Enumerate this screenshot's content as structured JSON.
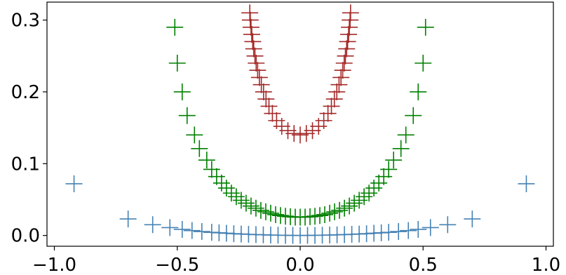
{
  "chart_data": {
    "type": "scatter",
    "title": "",
    "xlabel": "",
    "ylabel": "",
    "xlim": [
      -1.03,
      1.03
    ],
    "ylim": [
      -0.015,
      0.325
    ],
    "xticks": [
      -1.0,
      -0.5,
      0.0,
      0.5,
      1.0
    ],
    "xtick_labels": [
      "−1.0",
      "−0.5",
      "0.0",
      "0.5",
      "1.0"
    ],
    "yticks": [
      0.0,
      0.1,
      0.2,
      0.3
    ],
    "ytick_labels": [
      "0.0",
      "0.1",
      "0.2",
      "0.3"
    ],
    "grid": false,
    "legend": null,
    "marker": "+",
    "series": [
      {
        "color": "#4682b4",
        "points": [
          [
            -0.92,
            0.072
          ],
          [
            -0.7,
            0.023
          ],
          [
            -0.6,
            0.015
          ],
          [
            -0.53,
            0.011
          ],
          [
            -0.48,
            0.0085
          ],
          [
            -0.44,
            0.0068
          ],
          [
            -0.4,
            0.0055
          ],
          [
            -0.36,
            0.0044
          ],
          [
            -0.33,
            0.0037
          ],
          [
            -0.3,
            0.0031
          ],
          [
            -0.27,
            0.0025
          ],
          [
            -0.24,
            0.002
          ],
          [
            -0.21,
            0.0016
          ],
          [
            -0.18,
            0.0012
          ],
          [
            -0.15,
            0.0009
          ],
          [
            -0.12,
            0.0006
          ],
          [
            -0.09,
            0.0004
          ],
          [
            -0.06,
            0.0002
          ],
          [
            -0.03,
            0.0001
          ],
          [
            0.0,
            0.0
          ],
          [
            0.03,
            0.0001
          ],
          [
            0.06,
            0.0002
          ],
          [
            0.09,
            0.0004
          ],
          [
            0.12,
            0.0006
          ],
          [
            0.15,
            0.0009
          ],
          [
            0.18,
            0.0012
          ],
          [
            0.21,
            0.0016
          ],
          [
            0.24,
            0.002
          ],
          [
            0.27,
            0.0025
          ],
          [
            0.3,
            0.0031
          ],
          [
            0.33,
            0.0037
          ],
          [
            0.36,
            0.0044
          ],
          [
            0.4,
            0.0055
          ],
          [
            0.44,
            0.0068
          ],
          [
            0.48,
            0.0085
          ],
          [
            0.53,
            0.011
          ],
          [
            0.6,
            0.015
          ],
          [
            0.7,
            0.023
          ],
          [
            0.92,
            0.072
          ]
        ]
      },
      {
        "color": "#008000",
        "points": [
          [
            -0.51,
            0.29
          ],
          [
            -0.5,
            0.24
          ],
          [
            -0.48,
            0.2
          ],
          [
            -0.46,
            0.167
          ],
          [
            -0.43,
            0.14
          ],
          [
            -0.41,
            0.121
          ],
          [
            -0.38,
            0.105
          ],
          [
            -0.36,
            0.092
          ],
          [
            -0.34,
            0.082
          ],
          [
            -0.32,
            0.073
          ],
          [
            -0.3,
            0.066
          ],
          [
            -0.28,
            0.059
          ],
          [
            -0.26,
            0.054
          ],
          [
            -0.24,
            0.049
          ],
          [
            -0.22,
            0.045
          ],
          [
            -0.2,
            0.041
          ],
          [
            -0.18,
            0.038
          ],
          [
            -0.16,
            0.035
          ],
          [
            -0.14,
            0.033
          ],
          [
            -0.12,
            0.031
          ],
          [
            -0.1,
            0.029
          ],
          [
            -0.08,
            0.0278
          ],
          [
            -0.06,
            0.0268
          ],
          [
            -0.04,
            0.0261
          ],
          [
            -0.02,
            0.0256
          ],
          [
            0.0,
            0.0255
          ],
          [
            0.02,
            0.0256
          ],
          [
            0.04,
            0.0261
          ],
          [
            0.06,
            0.0268
          ],
          [
            0.08,
            0.0278
          ],
          [
            0.1,
            0.029
          ],
          [
            0.12,
            0.031
          ],
          [
            0.14,
            0.033
          ],
          [
            0.16,
            0.035
          ],
          [
            0.18,
            0.038
          ],
          [
            0.2,
            0.041
          ],
          [
            0.22,
            0.045
          ],
          [
            0.24,
            0.049
          ],
          [
            0.26,
            0.054
          ],
          [
            0.28,
            0.059
          ],
          [
            0.3,
            0.066
          ],
          [
            0.32,
            0.073
          ],
          [
            0.34,
            0.082
          ],
          [
            0.36,
            0.092
          ],
          [
            0.38,
            0.105
          ],
          [
            0.41,
            0.121
          ],
          [
            0.43,
            0.14
          ],
          [
            0.46,
            0.167
          ],
          [
            0.48,
            0.2
          ],
          [
            0.5,
            0.24
          ],
          [
            0.51,
            0.29
          ]
        ]
      },
      {
        "color": "#a52a2a",
        "points": [
          [
            -0.205,
            0.31
          ],
          [
            -0.203,
            0.3
          ],
          [
            -0.2,
            0.29
          ],
          [
            -0.197,
            0.28
          ],
          [
            -0.193,
            0.27
          ],
          [
            -0.189,
            0.26
          ],
          [
            -0.184,
            0.25
          ],
          [
            -0.179,
            0.24
          ],
          [
            -0.173,
            0.23
          ],
          [
            -0.166,
            0.22
          ],
          [
            -0.158,
            0.21
          ],
          [
            -0.149,
            0.2
          ],
          [
            -0.139,
            0.19
          ],
          [
            -0.127,
            0.18
          ],
          [
            -0.113,
            0.17
          ],
          [
            -0.096,
            0.16
          ],
          [
            -0.075,
            0.152
          ],
          [
            -0.05,
            0.146
          ],
          [
            -0.025,
            0.142
          ],
          [
            0.0,
            0.14
          ],
          [
            0.025,
            0.142
          ],
          [
            0.05,
            0.146
          ],
          [
            0.075,
            0.152
          ],
          [
            0.096,
            0.16
          ],
          [
            0.113,
            0.17
          ],
          [
            0.127,
            0.18
          ],
          [
            0.139,
            0.19
          ],
          [
            0.149,
            0.2
          ],
          [
            0.158,
            0.21
          ],
          [
            0.166,
            0.22
          ],
          [
            0.173,
            0.23
          ],
          [
            0.179,
            0.24
          ],
          [
            0.184,
            0.25
          ],
          [
            0.189,
            0.26
          ],
          [
            0.193,
            0.27
          ],
          [
            0.197,
            0.28
          ],
          [
            0.2,
            0.29
          ],
          [
            0.203,
            0.3
          ],
          [
            0.205,
            0.31
          ]
        ]
      }
    ]
  }
}
